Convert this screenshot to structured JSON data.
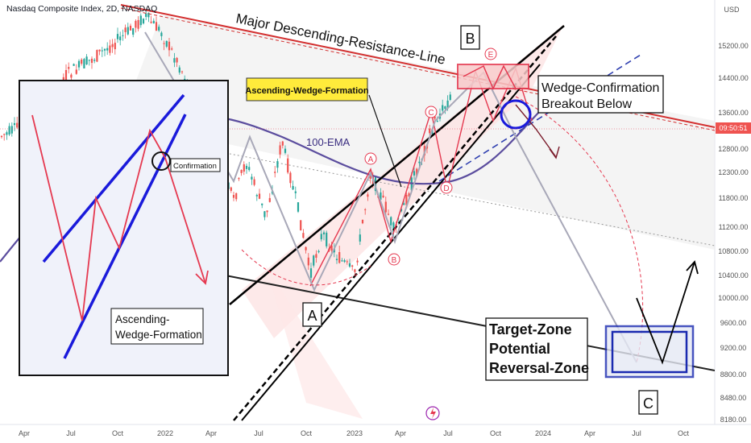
{
  "header": {
    "title": "Nasdaq Composite Index, 2D, NASDAQ"
  },
  "currency": "USD",
  "price_axis": [
    "15200.00",
    "14400.00",
    "13600.00",
    "12800.00",
    "12300.00",
    "11800.00",
    "11200.00",
    "10800.00",
    "10400.00",
    "10000.00",
    "9600.00",
    "9200.00",
    "8800.00",
    "8480.00",
    "8180.00"
  ],
  "current_price_tag": "09:50:51",
  "time_axis": [
    "Apr",
    "Jul",
    "Oct",
    "2022",
    "Apr",
    "Jul",
    "Oct",
    "2023",
    "Apr",
    "Jul",
    "Oct",
    "2024",
    "Apr",
    "Jul",
    "Oct"
  ],
  "annotations": {
    "resistance": "Major Descending-Resistance-Line",
    "wedge_callout": "Ascending-Wedge-Formation",
    "ema": "100-EMA",
    "confirmation_box": [
      "Wedge-Confirmation",
      "Breakout Below"
    ],
    "target_box": [
      "Target-Zone",
      "Potential",
      "Reversal-Zone"
    ],
    "pivot_B": "B",
    "pivot_A": "A",
    "pivot_C": "C",
    "wave_labels": [
      "A",
      "B",
      "C",
      "D",
      "E"
    ]
  },
  "inset": {
    "confirmation": "Confirmation",
    "title": [
      "Ascending-",
      "Wedge-Formation"
    ]
  },
  "colors": {
    "up": "#26a69a",
    "down": "#ef5350",
    "wedge": "#000000",
    "ema": "#5b4d9e",
    "resistance": "#d32f2f",
    "target": "#1a237e",
    "inset_blue": "#1a1adb",
    "inset_red": "#e53950"
  },
  "chart_data": {
    "type": "line",
    "title": "Nasdaq Composite Index, 2D, NASDAQ",
    "xlabel": "",
    "ylabel": "",
    "ylim": [
      8180,
      15200
    ],
    "x": [
      "2021-04",
      "2021-07",
      "2021-10",
      "2022-01",
      "2022-04",
      "2022-07",
      "2022-10",
      "2023-01",
      "2023-04",
      "2023-07",
      "2023-10",
      "2024-01",
      "2024-04",
      "2024-07",
      "2024-10"
    ],
    "series": [
      {
        "values": [
          13500,
          14200,
          14800,
          15400,
          13800,
          11400,
          10500,
          10900,
          12100,
          14200,
          13200,
          null,
          null,
          null,
          null
        ]
      }
    ]
  }
}
